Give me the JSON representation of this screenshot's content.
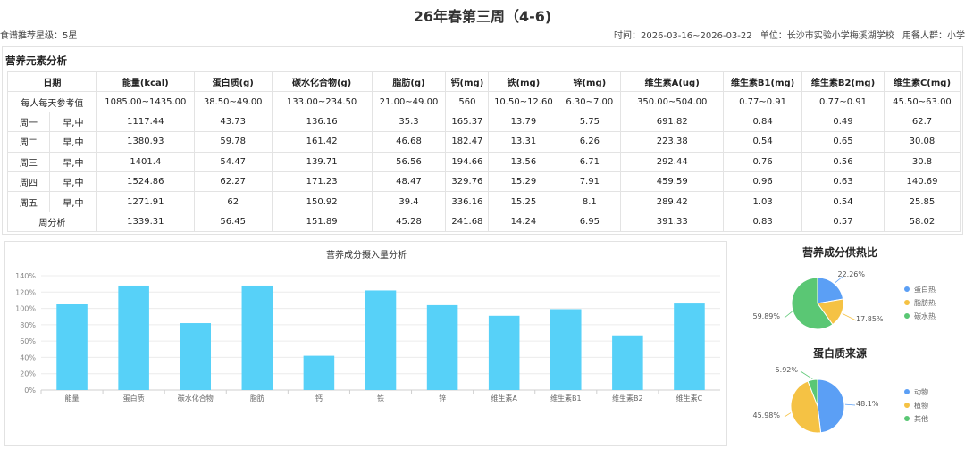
{
  "header": {
    "title": "26年春第三周（4-6)",
    "rating": "食谱推荐星级：5星",
    "time": "时间：2026-03-16~2026-03-22",
    "unit": "单位：长沙市实验小学梅溪湖学校",
    "group": "用餐人群：小学"
  },
  "nutrition": {
    "section_title": "营养元素分析",
    "columns": [
      "日期",
      "能量(kcal)",
      "蛋白质(g)",
      "碳水化合物(g)",
      "脂肪(g)",
      "钙(mg)",
      "铁(mg)",
      "锌(mg)",
      "维生素A(ug)",
      "维生素B1(mg)",
      "维生素B2(mg)",
      "维生素C(mg)"
    ],
    "reference": {
      "label": "每人每天参考值",
      "values": [
        "1085.00~1435.00",
        "38.50~49.00",
        "133.00~234.50",
        "21.00~49.00",
        "560",
        "10.50~12.60",
        "6.30~7.00",
        "350.00~504.00",
        "0.77~0.91",
        "0.77~0.91",
        "45.50~63.00"
      ]
    },
    "days": [
      {
        "day": "周一",
        "meal": "早,中",
        "values": [
          "1117.44",
          "43.73",
          "136.16",
          "35.3",
          "165.37",
          "13.79",
          "5.75",
          "691.82",
          "0.84",
          "0.49",
          "62.7"
        ]
      },
      {
        "day": "周二",
        "meal": "早,中",
        "values": [
          "1380.93",
          "59.78",
          "161.42",
          "46.68",
          "182.47",
          "13.31",
          "6.26",
          "223.38",
          "0.54",
          "0.65",
          "30.08"
        ]
      },
      {
        "day": "周三",
        "meal": "早,中",
        "values": [
          "1401.4",
          "54.47",
          "139.71",
          "56.56",
          "194.66",
          "13.56",
          "6.71",
          "292.44",
          "0.76",
          "0.56",
          "30.8"
        ]
      },
      {
        "day": "周四",
        "meal": "早,中",
        "values": [
          "1524.86",
          "62.27",
          "171.23",
          "48.47",
          "329.76",
          "15.29",
          "7.91",
          "459.59",
          "0.96",
          "0.63",
          "140.69"
        ]
      },
      {
        "day": "周五",
        "meal": "早,中",
        "values": [
          "1271.91",
          "62",
          "150.92",
          "39.4",
          "336.16",
          "15.25",
          "8.1",
          "289.42",
          "1.03",
          "0.54",
          "25.85"
        ]
      }
    ],
    "summary": {
      "label": "周分析",
      "values": [
        "1339.31",
        "56.45",
        "151.89",
        "45.28",
        "241.68",
        "14.24",
        "6.95",
        "391.33",
        "0.83",
        "0.57",
        "58.02"
      ]
    }
  },
  "chart_data": [
    {
      "type": "bar",
      "title": "营养成分摄入量分析",
      "categories": [
        "能量",
        "蛋白质",
        "碳水化合物",
        "脂肪",
        "钙",
        "铁",
        "锌",
        "维生素A",
        "维生素B1",
        "维生素B2",
        "维生素C"
      ],
      "values": [
        105,
        128,
        82,
        128,
        42,
        122,
        104,
        91,
        99,
        67,
        106
      ],
      "ylim": [
        0,
        140
      ],
      "yticks": [
        "0%",
        "20%",
        "40%",
        "60%",
        "80%",
        "100%",
        "120%",
        "140%"
      ],
      "grid": true,
      "color": "#57d1f8"
    },
    {
      "type": "pie",
      "title": "营养成分供热比",
      "slices": [
        {
          "name": "蛋白热",
          "value": 22.26,
          "label": "22.26%",
          "color": "#5b9ff5"
        },
        {
          "name": "脂肪热",
          "value": 17.85,
          "label": "17.85%",
          "color": "#f5c244"
        },
        {
          "name": "碳水热",
          "value": 59.89,
          "label": "59.89%",
          "color": "#5ac774"
        }
      ],
      "legend": "right"
    },
    {
      "type": "pie",
      "title": "蛋白质来源",
      "slices": [
        {
          "name": "动物",
          "value": 48.1,
          "label": "48.1%",
          "color": "#5b9ff5"
        },
        {
          "name": "植物",
          "value": 45.98,
          "label": "45.98%",
          "color": "#f5c244"
        },
        {
          "name": "其他",
          "value": 5.92,
          "label": "5.92%",
          "color": "#5ac774"
        }
      ],
      "legend": "right"
    }
  ]
}
